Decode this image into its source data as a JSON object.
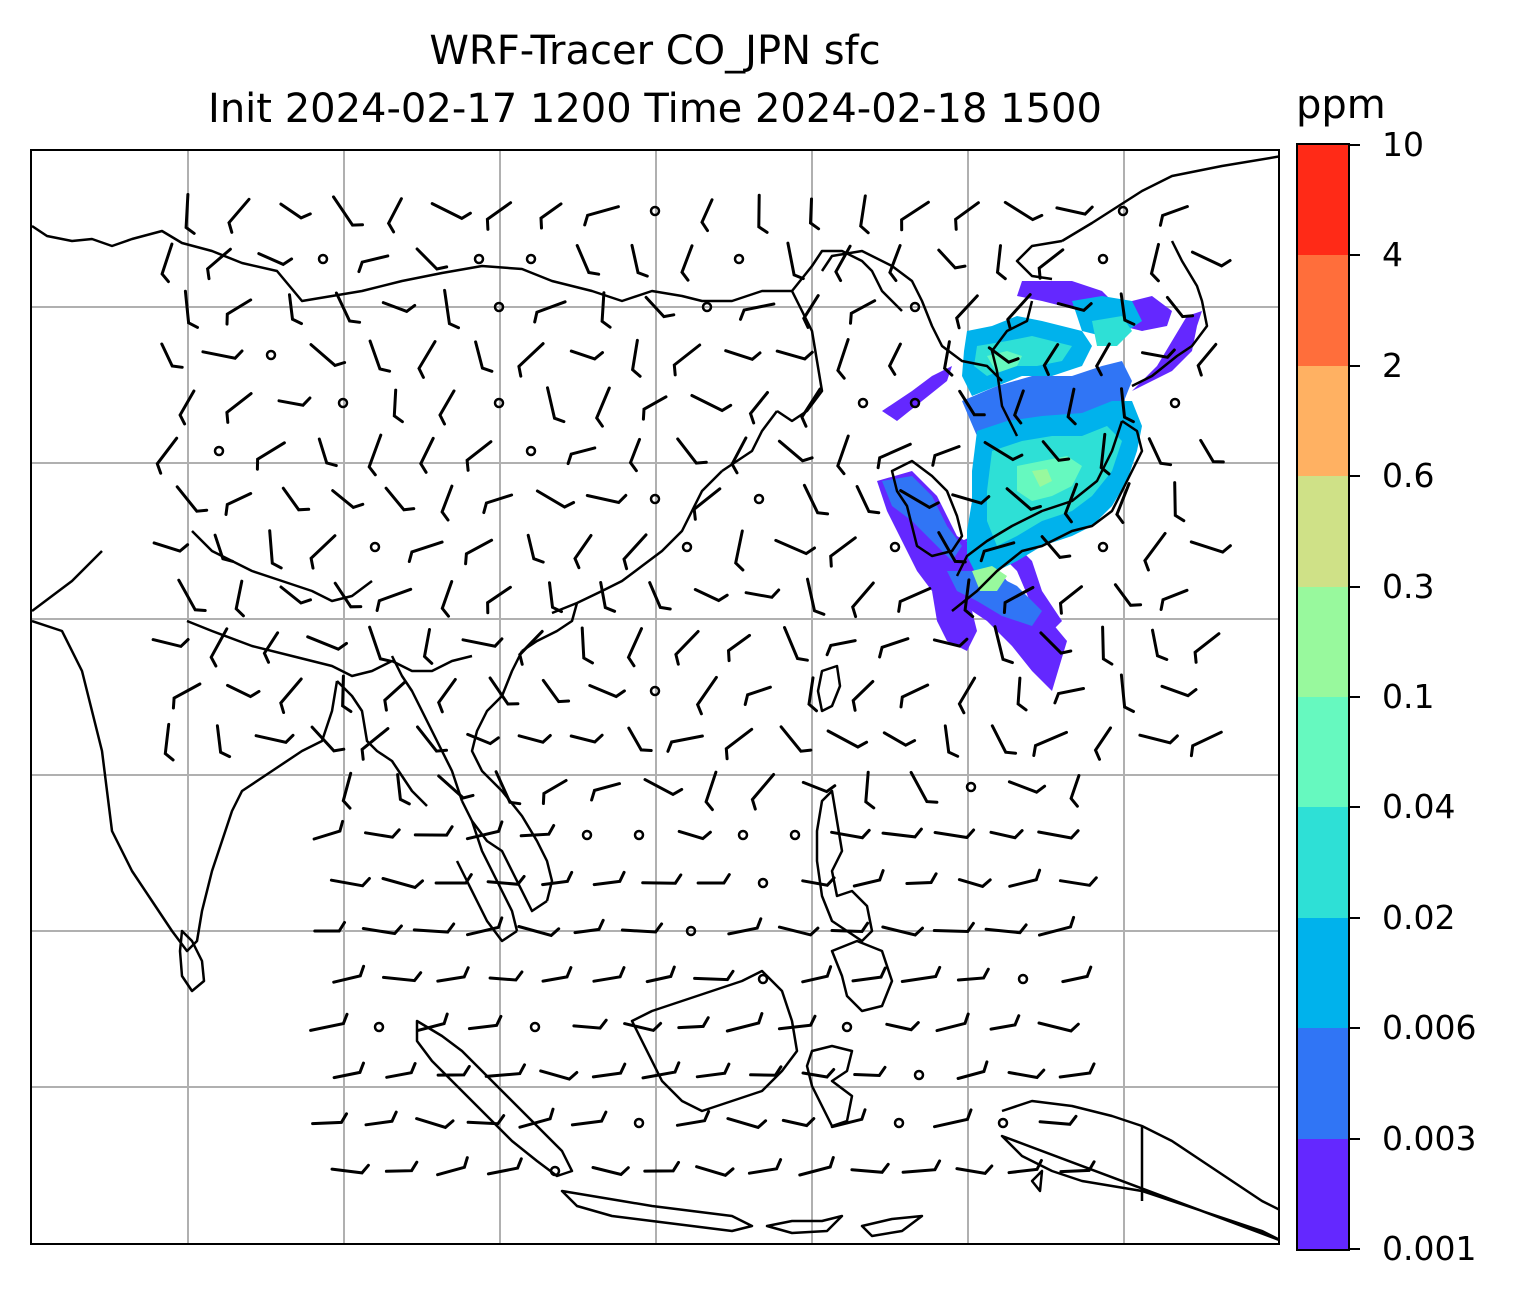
{
  "title_line1": "WRF-Tracer CO_JPN sfc",
  "title_line2": "Init 2024-02-17 1200 Time 2024-02-18 1500",
  "colorbar": {
    "unit": "ppm",
    "levels": [
      "0.001",
      "0.003",
      "0.006",
      "0.02",
      "0.04",
      "0.1",
      "0.3",
      "0.6",
      "2",
      "4",
      "10"
    ],
    "colors": [
      "#6428ff",
      "#3075f5",
      "#00b2ec",
      "#2ee0d6",
      "#66f9bf",
      "#98f99d",
      "#cfe187",
      "#ffb162",
      "#ff6e3b",
      "#ff2a17"
    ]
  },
  "map": {
    "gridlines": true,
    "projection": "lat-lon",
    "features": [
      "coastlines",
      "country-borders",
      "wind-barbs"
    ],
    "plume_region": "Japan / Korea / NE China"
  }
}
